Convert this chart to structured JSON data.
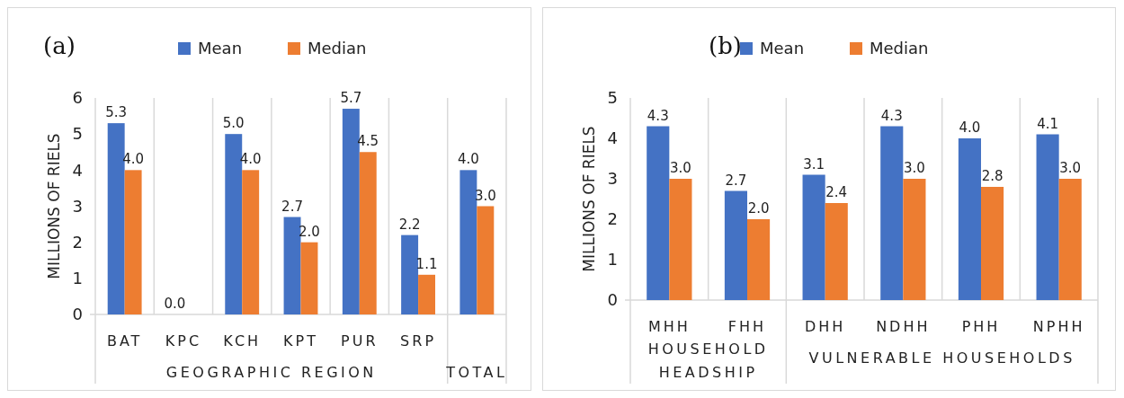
{
  "chart_data": [
    {
      "type": "bar",
      "title": "(a)",
      "ylabel": "MILLIONS OF RIELS",
      "categories": [
        "BAT",
        "KPC",
        "KCH",
        "KPT",
        "PUR",
        "SRP",
        null
      ],
      "series": [
        {
          "name": "Mean",
          "color": "#4472c4",
          "values": [
            5.3,
            0.0,
            5.0,
            2.7,
            5.7,
            2.2,
            4.0
          ],
          "value_labels": [
            "5.3",
            "0.0",
            "5.0",
            "2.7",
            "5.7",
            "2.2",
            "4.0"
          ]
        },
        {
          "name": "Median",
          "color": "#ed7d31",
          "values": [
            4.0,
            null,
            4.0,
            2.0,
            4.5,
            1.1,
            3.0
          ],
          "value_labels": [
            "4.0",
            null,
            "4.0",
            "2.0",
            "4.5",
            "1.1",
            "3.0"
          ]
        }
      ],
      "ylim": [
        0,
        6
      ],
      "yticks": [
        0,
        1,
        2,
        3,
        4,
        5,
        6
      ],
      "grid": "x",
      "legend": "top",
      "annotations": [
        "GEOGRAPHIC REGION",
        "TOTAL"
      ]
    },
    {
      "type": "bar",
      "title": "(b)",
      "ylabel": "MILLIONS OF RIELS",
      "categories": [
        "MHH",
        "FHH",
        "DHH",
        "NDHH",
        "PHH",
        "NPHH"
      ],
      "series": [
        {
          "name": "Mean",
          "color": "#4472c4",
          "values": [
            4.3,
            2.7,
            3.1,
            4.3,
            4.0,
            4.1
          ],
          "value_labels": [
            "4.3",
            "2.7",
            "3.1",
            "4.3",
            "4.0",
            "4.1"
          ]
        },
        {
          "name": "Median",
          "color": "#ed7d31",
          "values": [
            3.0,
            2.0,
            2.4,
            3.0,
            2.8,
            3.0
          ],
          "value_labels": [
            "3.0",
            "2.0",
            "2.4",
            "3.0",
            "2.8",
            "3.0"
          ]
        }
      ],
      "ylim": [
        0,
        5
      ],
      "yticks": [
        0,
        1,
        2,
        3,
        4,
        5
      ],
      "grid": "x",
      "legend": "top",
      "annotations": [
        "HOUSEHOLD HEADSHIP",
        "VULNERABLE HOUSEHOLDS"
      ]
    }
  ]
}
